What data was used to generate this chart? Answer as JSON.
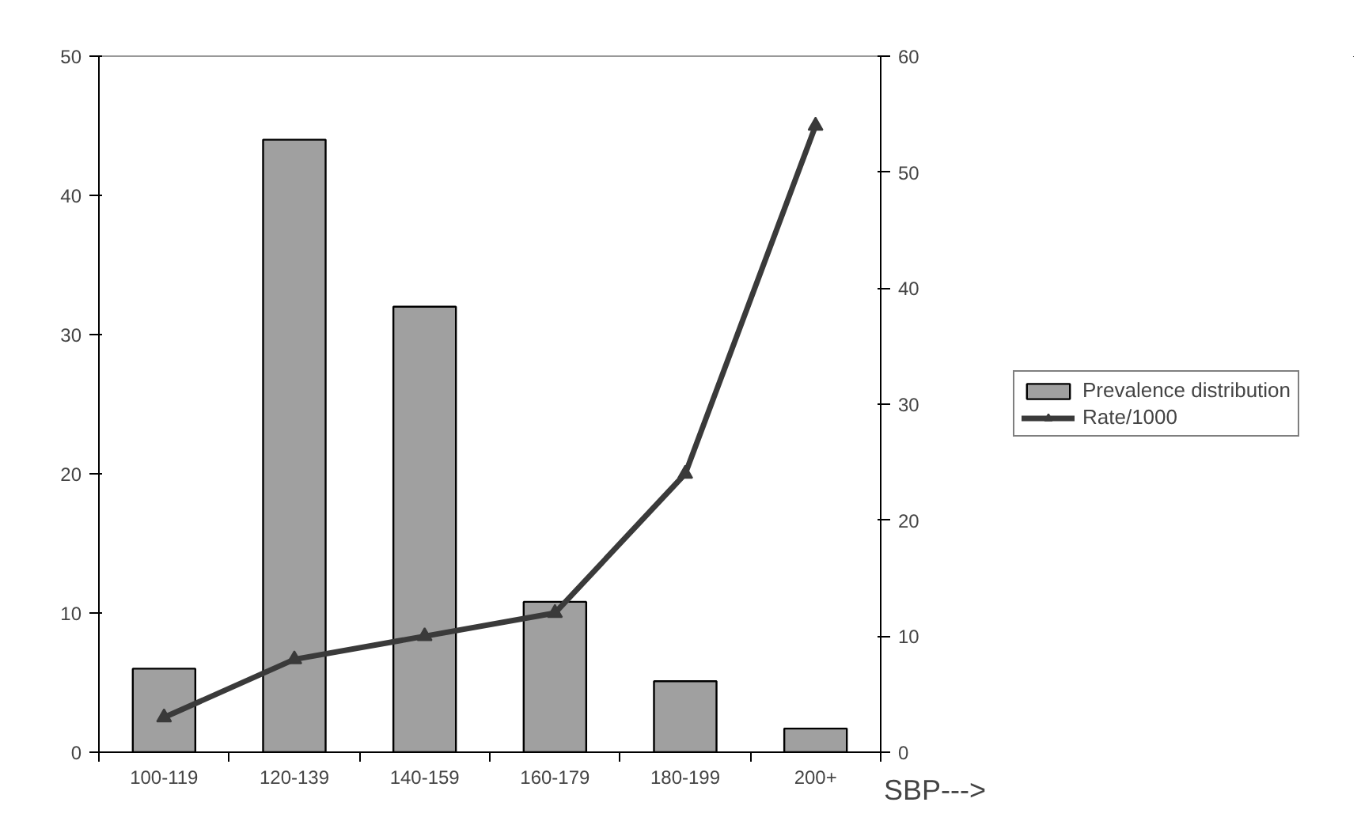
{
  "chart_data": {
    "type": "bar",
    "xlabel": "SBP--->",
    "categories": [
      "100-119",
      "120-139",
      "140-159",
      "160-179",
      "180-199",
      "200+"
    ],
    "series": [
      {
        "name": "Prevalence distribution",
        "color": "#a0a0a0",
        "values": [
          6,
          44,
          32,
          10.8,
          5.1,
          1.7
        ]
      },
      {
        "name": "Rate/1000",
        "type": "line",
        "axis": "y2",
        "color": "#3a3a3a",
        "marker": "triangle",
        "line_style": "solid",
        "values": [
          3,
          8,
          10,
          12,
          24,
          54
        ]
      }
    ],
    "ylim": [
      0,
      50
    ],
    "yticks": [
      0,
      10,
      20,
      30,
      40,
      50
    ],
    "y2lim": [
      0,
      60
    ],
    "y2ticks": [
      0,
      10,
      20,
      30,
      40,
      50,
      60
    ],
    "grid": false,
    "legend": "right"
  }
}
